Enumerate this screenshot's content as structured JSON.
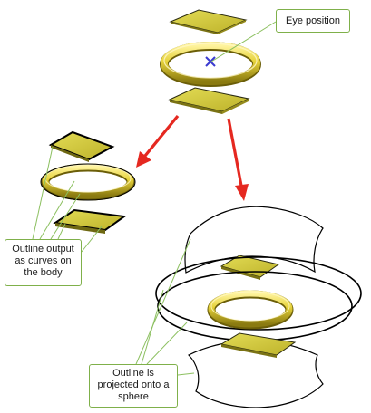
{
  "callouts": {
    "eye_position": {
      "line1": "Eye position"
    },
    "outline_curves": {
      "line1": "Outline output",
      "line2": "as curves on",
      "line3": "the body"
    },
    "outline_sphere": {
      "line1": "Outline is",
      "line2": "projected onto a",
      "line3": "sphere"
    }
  },
  "colors": {
    "plate_fill": "#d7cf3a",
    "plate_edge": "#2a2a10",
    "ring_fill": "#e6d23a",
    "arrow": "#e52820",
    "leader": "#8cc060",
    "eye_marker": "#3a3ad0",
    "outline": "#000000"
  },
  "icons": {
    "eye_marker": "x-cross-icon",
    "arrows": "red-arrow-icon"
  }
}
